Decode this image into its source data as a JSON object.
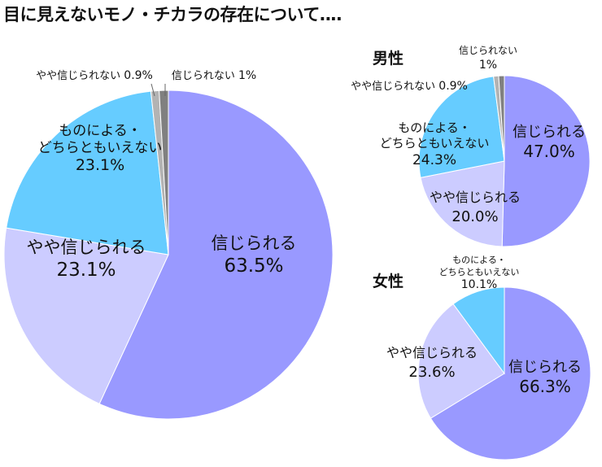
{
  "title": "目に見えないモノ・チカラの存在について‥‥",
  "chart_data": [
    {
      "type": "pie",
      "title": "",
      "legend": "none",
      "slices": [
        {
          "label": "信じられる",
          "value": 63.5,
          "value_text": "63.5%",
          "color": "#9999ff"
        },
        {
          "label": "やや信じられる",
          "value": 23.1,
          "value_text": "23.1%",
          "color": "#ccccff"
        },
        {
          "label": "ものによる・どちらともいえない",
          "label_lines": [
            "ものによる・",
            "どちらともいえない"
          ],
          "value": 23.1,
          "value_text": "23.1%",
          "color": "#66ccff"
        },
        {
          "label": "やや信じられない",
          "value": 0.9,
          "value_text": "0.9%",
          "color": "#b3b3b3"
        },
        {
          "label": "信じられない",
          "value": 1,
          "value_text": "1%",
          "color": "#808080"
        }
      ]
    },
    {
      "type": "pie",
      "title": "男性",
      "legend": "none",
      "slices": [
        {
          "label": "信じられる",
          "value": 47.0,
          "value_text": "47.0%",
          "color": "#9999ff"
        },
        {
          "label": "やや信じられる",
          "value": 20.0,
          "value_text": "20.0%",
          "color": "#ccccff"
        },
        {
          "label": "ものによる・どちらともいえない",
          "label_lines": [
            "ものによる・",
            "どちらともいえない"
          ],
          "value": 24.3,
          "value_text": "24.3%",
          "color": "#66ccff"
        },
        {
          "label": "やや信じられない",
          "value": 0.9,
          "value_text": "0.9%",
          "color": "#b3b3b3"
        },
        {
          "label": "信じられない",
          "value": 1,
          "value_text": "1%",
          "color": "#808080"
        }
      ]
    },
    {
      "type": "pie",
      "title": "女性",
      "legend": "none",
      "slices": [
        {
          "label": "信じられる",
          "value": 66.3,
          "value_text": "66.3%",
          "color": "#9999ff"
        },
        {
          "label": "やや信じられる",
          "value": 23.6,
          "value_text": "23.6%",
          "color": "#ccccff"
        },
        {
          "label": "ものによる・どちらともいえない",
          "label_lines": [
            "ものによる・",
            "どちらともいえない"
          ],
          "value": 10.1,
          "value_text": "10.1%",
          "color": "#66ccff"
        }
      ]
    }
  ]
}
